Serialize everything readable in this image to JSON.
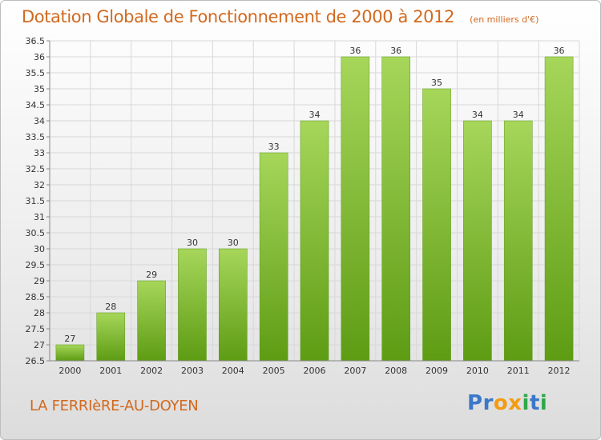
{
  "chart_data": {
    "type": "bar",
    "title": "Dotation Globale de Fonctionnement de 2000 à 2012",
    "subtitle": "(en milliers d'€)",
    "xlabel": "",
    "ylabel": "",
    "categories": [
      "2000",
      "2001",
      "2002",
      "2003",
      "2004",
      "2005",
      "2006",
      "2007",
      "2008",
      "2009",
      "2010",
      "2011",
      "2012"
    ],
    "values": [
      27,
      28,
      29,
      30,
      30,
      33,
      34,
      36,
      36,
      35,
      34,
      34,
      36
    ],
    "ylim": [
      26.5,
      36.5
    ],
    "ytick_step": 0.5,
    "grid": true,
    "bar_color": "#7fbf2a"
  },
  "commune": "LA FERRIèRE-AU-DOYEN",
  "logo": {
    "letters": [
      "P",
      "r",
      "o",
      "x",
      "i",
      "t",
      "i"
    ],
    "colors": [
      "#3a78c8",
      "#3a78c8",
      "#f39c12",
      "#f39c12",
      "#2ea84a",
      "#3a78c8",
      "#2ea84a"
    ]
  }
}
